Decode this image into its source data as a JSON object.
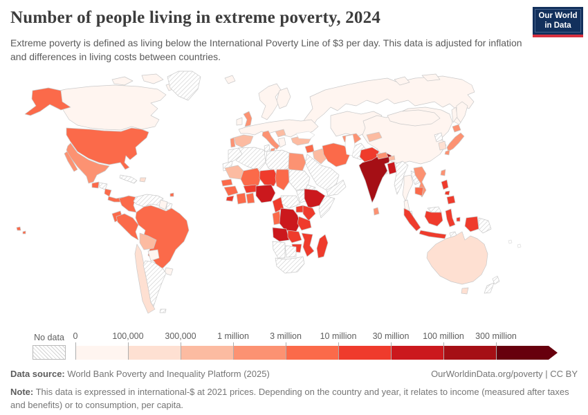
{
  "header": {
    "title": "Number of people living in extreme poverty, 2024",
    "subtitle": "Extreme poverty is defined as living below the International Poverty Line of $3 per day. This data is adjusted for inflation and differences in living costs between countries.",
    "logo_line1": "Our World",
    "logo_line2": "in Data",
    "logo_bg_color": "#12305c",
    "logo_accent_color": "#d8313f"
  },
  "legend": {
    "no_data_label": "No data",
    "bins": [
      {
        "label": "0",
        "color": "#fff5f0"
      },
      {
        "label": "100,000",
        "color": "#fee0d2"
      },
      {
        "label": "300,000",
        "color": "#fcbba1"
      },
      {
        "label": "1 million",
        "color": "#fc9272"
      },
      {
        "label": "3 million",
        "color": "#fb6a4a"
      },
      {
        "label": "10 million",
        "color": "#ef3b2c"
      },
      {
        "label": "30 million",
        "color": "#cb181d"
      },
      {
        "label": "100 million",
        "color": "#a50f15"
      },
      {
        "label": "300 million",
        "color": "#67000d"
      }
    ]
  },
  "footer": {
    "source_label": "Data source:",
    "source_text": " World Bank Poverty and Inequality Platform (2025)",
    "credit": "OurWorldinData.org/poverty | CC BY",
    "note_label": "Note:",
    "note_text": " This data is expressed in international-$ at 2021 prices. Depending on the country and year, it relates to income (measured after taxes and benefits) or to consumption, per capita."
  },
  "chart_data": {
    "type": "choropleth",
    "title": "Number of people living in extreme poverty",
    "year": 2024,
    "unit": "people below the International Poverty Line of $3 per day",
    "no_data_style": "diagonal-hatch",
    "bin_ranges": [
      "0–100,000",
      "100,000–300,000",
      "300,000–1 million",
      "1–3 million",
      "3–10 million",
      "10–30 million",
      "30–100 million",
      "100–300 million",
      "300 million+"
    ],
    "countries": [
      {
        "id": "canada",
        "name": "Canada",
        "bin": 0
      },
      {
        "id": "united-states",
        "name": "United States",
        "bin": 4
      },
      {
        "id": "greenland",
        "name": "Greenland",
        "bin": -1
      },
      {
        "id": "mexico",
        "name": "Mexico",
        "bin": 3
      },
      {
        "id": "guatemala",
        "name": "Guatemala",
        "bin": 4
      },
      {
        "id": "honduras",
        "name": "Honduras",
        "bin": -1
      },
      {
        "id": "nicaragua",
        "name": "Nicaragua",
        "bin": 4
      },
      {
        "id": "panama",
        "name": "Panama",
        "bin": 4
      },
      {
        "id": "cuba",
        "name": "Cuba",
        "bin": -1
      },
      {
        "id": "hispaniola",
        "name": "Haiti / Dominican Republic",
        "bin": 1
      },
      {
        "id": "trinidad",
        "name": "Trinidad and Tobago",
        "bin": 4
      },
      {
        "id": "colombia",
        "name": "Colombia",
        "bin": 4
      },
      {
        "id": "venezuela",
        "name": "Venezuela",
        "bin": -1
      },
      {
        "id": "guyana",
        "name": "Guyana",
        "bin": 0
      },
      {
        "id": "suriname",
        "name": "Suriname",
        "bin": -1
      },
      {
        "id": "brazil",
        "name": "Brazil",
        "bin": 4
      },
      {
        "id": "ecuador",
        "name": "Ecuador",
        "bin": 4
      },
      {
        "id": "peru",
        "name": "Peru",
        "bin": 4
      },
      {
        "id": "bolivia",
        "name": "Bolivia",
        "bin": 2
      },
      {
        "id": "paraguay",
        "name": "Paraguay",
        "bin": 0
      },
      {
        "id": "uruguay",
        "name": "Uruguay",
        "bin": 0
      },
      {
        "id": "chile",
        "name": "Chile",
        "bin": 1
      },
      {
        "id": "argentina",
        "name": "Argentina",
        "bin": -1
      },
      {
        "id": "falkland-islands",
        "name": "Falkland Islands",
        "bin": -1
      },
      {
        "id": "iceland",
        "name": "Iceland",
        "bin": 0
      },
      {
        "id": "ireland",
        "name": "Ireland",
        "bin": 0
      },
      {
        "id": "united-kingdom",
        "name": "United Kingdom",
        "bin": 3
      },
      {
        "id": "europe",
        "name": "Western & Central Europe (most countries)",
        "bin": 0
      },
      {
        "id": "scandinavia",
        "name": "Norway / Sweden / Finland",
        "bin": 0
      },
      {
        "id": "portugal",
        "name": "Portugal",
        "bin": 3
      },
      {
        "id": "spain",
        "name": "Spain",
        "bin": 2
      },
      {
        "id": "italy",
        "name": "Italy",
        "bin": 3
      },
      {
        "id": "balkans",
        "name": "Bosnia / Serbia",
        "bin": 2
      },
      {
        "id": "greece",
        "name": "Greece",
        "bin": 0
      },
      {
        "id": "turkey",
        "name": "Turkey",
        "bin": 2
      },
      {
        "id": "russia",
        "name": "Russia",
        "bin": 0
      },
      {
        "id": "kazakhstan",
        "name": "Kazakhstan",
        "bin": 0
      },
      {
        "id": "uzbekistan",
        "name": "Uzbekistan",
        "bin": 3
      },
      {
        "id": "turkmenistan",
        "name": "Turkmenistan",
        "bin": -1
      },
      {
        "id": "kyrgyzstan-tajikistan",
        "name": "Kyrgyzstan / Tajikistan",
        "bin": 2
      },
      {
        "id": "china",
        "name": "China",
        "bin": 0
      },
      {
        "id": "mongolia",
        "name": "Mongolia",
        "bin": 0
      },
      {
        "id": "north-korea",
        "name": "North Korea",
        "bin": -1
      },
      {
        "id": "south-korea",
        "name": "South Korea",
        "bin": 1
      },
      {
        "id": "japan",
        "name": "Japan",
        "bin": 3
      },
      {
        "id": "taiwan",
        "name": "Taiwan",
        "bin": 3
      },
      {
        "id": "syria",
        "name": "Syria",
        "bin": 4
      },
      {
        "id": "iraq",
        "name": "Iraq",
        "bin": 2
      },
      {
        "id": "iran",
        "name": "Iran",
        "bin": 4
      },
      {
        "id": "saudi-arabia",
        "name": "Saudi Arabia",
        "bin": -1
      },
      {
        "id": "yemen-oman",
        "name": "Yemen / Oman",
        "bin": -1
      },
      {
        "id": "afghanistan",
        "name": "Afghanistan",
        "bin": 5
      },
      {
        "id": "pakistan",
        "name": "Pakistan",
        "bin": -1
      },
      {
        "id": "india",
        "name": "India",
        "bin": 7
      },
      {
        "id": "nepal",
        "name": "Nepal",
        "bin": 3
      },
      {
        "id": "bhutan",
        "name": "Bhutan",
        "bin": 2
      },
      {
        "id": "bangladesh",
        "name": "Bangladesh",
        "bin": 6
      },
      {
        "id": "sri-lanka",
        "name": "Sri Lanka",
        "bin": 3
      },
      {
        "id": "myanmar",
        "name": "Myanmar",
        "bin": -1
      },
      {
        "id": "thailand",
        "name": "Thailand",
        "bin": 0
      },
      {
        "id": "laos",
        "name": "Laos",
        "bin": -1
      },
      {
        "id": "vietnam",
        "name": "Vietnam",
        "bin": 3
      },
      {
        "id": "cambodia",
        "name": "Cambodia",
        "bin": 4
      },
      {
        "id": "malaysia",
        "name": "Malaysia",
        "bin": -1
      },
      {
        "id": "philippines",
        "name": "Philippines",
        "bin": 5
      },
      {
        "id": "indonesia",
        "name": "Indonesia",
        "bin": 5
      },
      {
        "id": "timor-leste",
        "name": "Timor-Leste",
        "bin": -1
      },
      {
        "id": "papua-new-guinea",
        "name": "Papua New Guinea",
        "bin": -1
      },
      {
        "id": "australia",
        "name": "Australia",
        "bin": 1
      },
      {
        "id": "new-zealand",
        "name": "New Zealand",
        "bin": -1
      },
      {
        "id": "morocco",
        "name": "Morocco",
        "bin": -1
      },
      {
        "id": "western-sahara",
        "name": "Western Sahara",
        "bin": -1
      },
      {
        "id": "algeria",
        "name": "Algeria",
        "bin": -1
      },
      {
        "id": "tunisia",
        "name": "Tunisia",
        "bin": -1
      },
      {
        "id": "libya",
        "name": "Libya",
        "bin": -1
      },
      {
        "id": "egypt",
        "name": "Egypt",
        "bin": 3
      },
      {
        "id": "mauritania",
        "name": "Mauritania",
        "bin": 2
      },
      {
        "id": "mali",
        "name": "Mali",
        "bin": 4
      },
      {
        "id": "niger",
        "name": "Niger",
        "bin": 5
      },
      {
        "id": "chad",
        "name": "Chad",
        "bin": 4
      },
      {
        "id": "sudan",
        "name": "Sudan",
        "bin": -1
      },
      {
        "id": "eritrea",
        "name": "Eritrea",
        "bin": -1
      },
      {
        "id": "senegal",
        "name": "Senegal",
        "bin": 4
      },
      {
        "id": "guinea",
        "name": "Guinea",
        "bin": 4
      },
      {
        "id": "sierra-leone",
        "name": "Sierra Leone",
        "bin": 5
      },
      {
        "id": "cote-divoire",
        "name": "Côte d'Ivoire",
        "bin": 4
      },
      {
        "id": "ghana",
        "name": "Ghana",
        "bin": 4
      },
      {
        "id": "burkina-faso",
        "name": "Burkina Faso",
        "bin": 5
      },
      {
        "id": "nigeria",
        "name": "Nigeria",
        "bin": 6
      },
      {
        "id": "cameroon",
        "name": "Cameroon",
        "bin": 5
      },
      {
        "id": "central-african-republic",
        "name": "Central African Republic",
        "bin": -1
      },
      {
        "id": "south-sudan",
        "name": "South Sudan",
        "bin": -1
      },
      {
        "id": "ethiopia",
        "name": "Ethiopia",
        "bin": 6
      },
      {
        "id": "somalia",
        "name": "Somalia",
        "bin": -1
      },
      {
        "id": "uganda",
        "name": "Uganda",
        "bin": 5
      },
      {
        "id": "kenya",
        "name": "Kenya",
        "bin": 5
      },
      {
        "id": "congo",
        "name": "Congo",
        "bin": 4
      },
      {
        "id": "dr-congo",
        "name": "Democratic Republic of Congo",
        "bin": 6
      },
      {
        "id": "tanzania",
        "name": "Tanzania",
        "bin": 5
      },
      {
        "id": "angola",
        "name": "Angola",
        "bin": 6
      },
      {
        "id": "zambia",
        "name": "Zambia",
        "bin": 5
      },
      {
        "id": "zimbabwe",
        "name": "Zimbabwe",
        "bin": 5
      },
      {
        "id": "mozambique",
        "name": "Mozambique",
        "bin": 5
      },
      {
        "id": "madagascar",
        "name": "Madagascar",
        "bin": 5
      },
      {
        "id": "namibia",
        "name": "Namibia",
        "bin": -1
      },
      {
        "id": "botswana",
        "name": "Botswana",
        "bin": -1
      },
      {
        "id": "south-africa",
        "name": "South Africa",
        "bin": -1
      }
    ]
  }
}
